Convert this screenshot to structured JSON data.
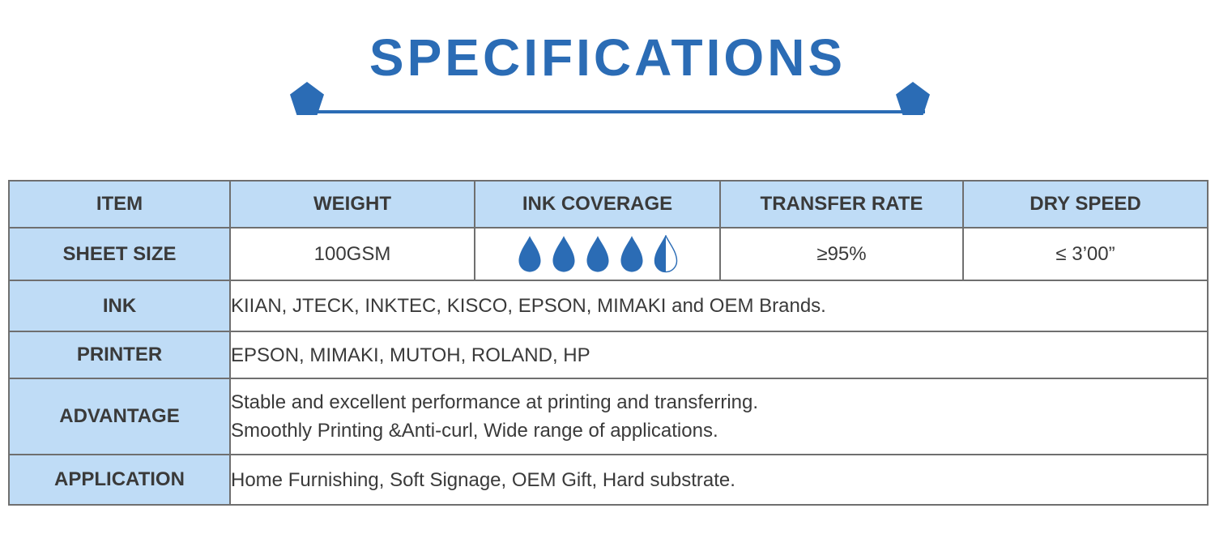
{
  "header": {
    "title": "SPECIFICATIONS"
  },
  "colors": {
    "accent_blue": "#2b6cb5",
    "cell_light_blue": "#bfdcf6",
    "border_gray": "#6f6f6f",
    "text_dark": "#3a3a3a"
  },
  "table": {
    "columns": [
      {
        "label": "ITEM"
      },
      {
        "label": "WEIGHT"
      },
      {
        "label": "INK COVERAGE"
      },
      {
        "label": "TRANSFER RATE"
      },
      {
        "label": "DRY SPEED"
      }
    ],
    "sheet_row": {
      "item": "SHEET SIZE",
      "weight": "100GSM",
      "ink_coverage": {
        "full_drops": 4,
        "half_drops": 1
      },
      "transfer_rate": "≥95%",
      "dry_speed": "≤ 3’00”"
    },
    "detail_rows": [
      {
        "label": "INK",
        "lines": [
          "KIIAN, JTECK, INKTEC, KISCO, EPSON, MIMAKI and OEM Brands."
        ]
      },
      {
        "label": "PRINTER",
        "lines": [
          "EPSON, MIMAKI, MUTOH, ROLAND, HP"
        ]
      },
      {
        "label": "ADVANTAGE",
        "lines": [
          "Stable and excellent performance at printing and transferring.",
          "Smoothly Printing &Anti-curl, Wide range of applications."
        ]
      },
      {
        "label": "APPLICATION",
        "lines": [
          "Home Furnishing, Soft Signage, OEM Gift, Hard substrate."
        ]
      }
    ]
  }
}
